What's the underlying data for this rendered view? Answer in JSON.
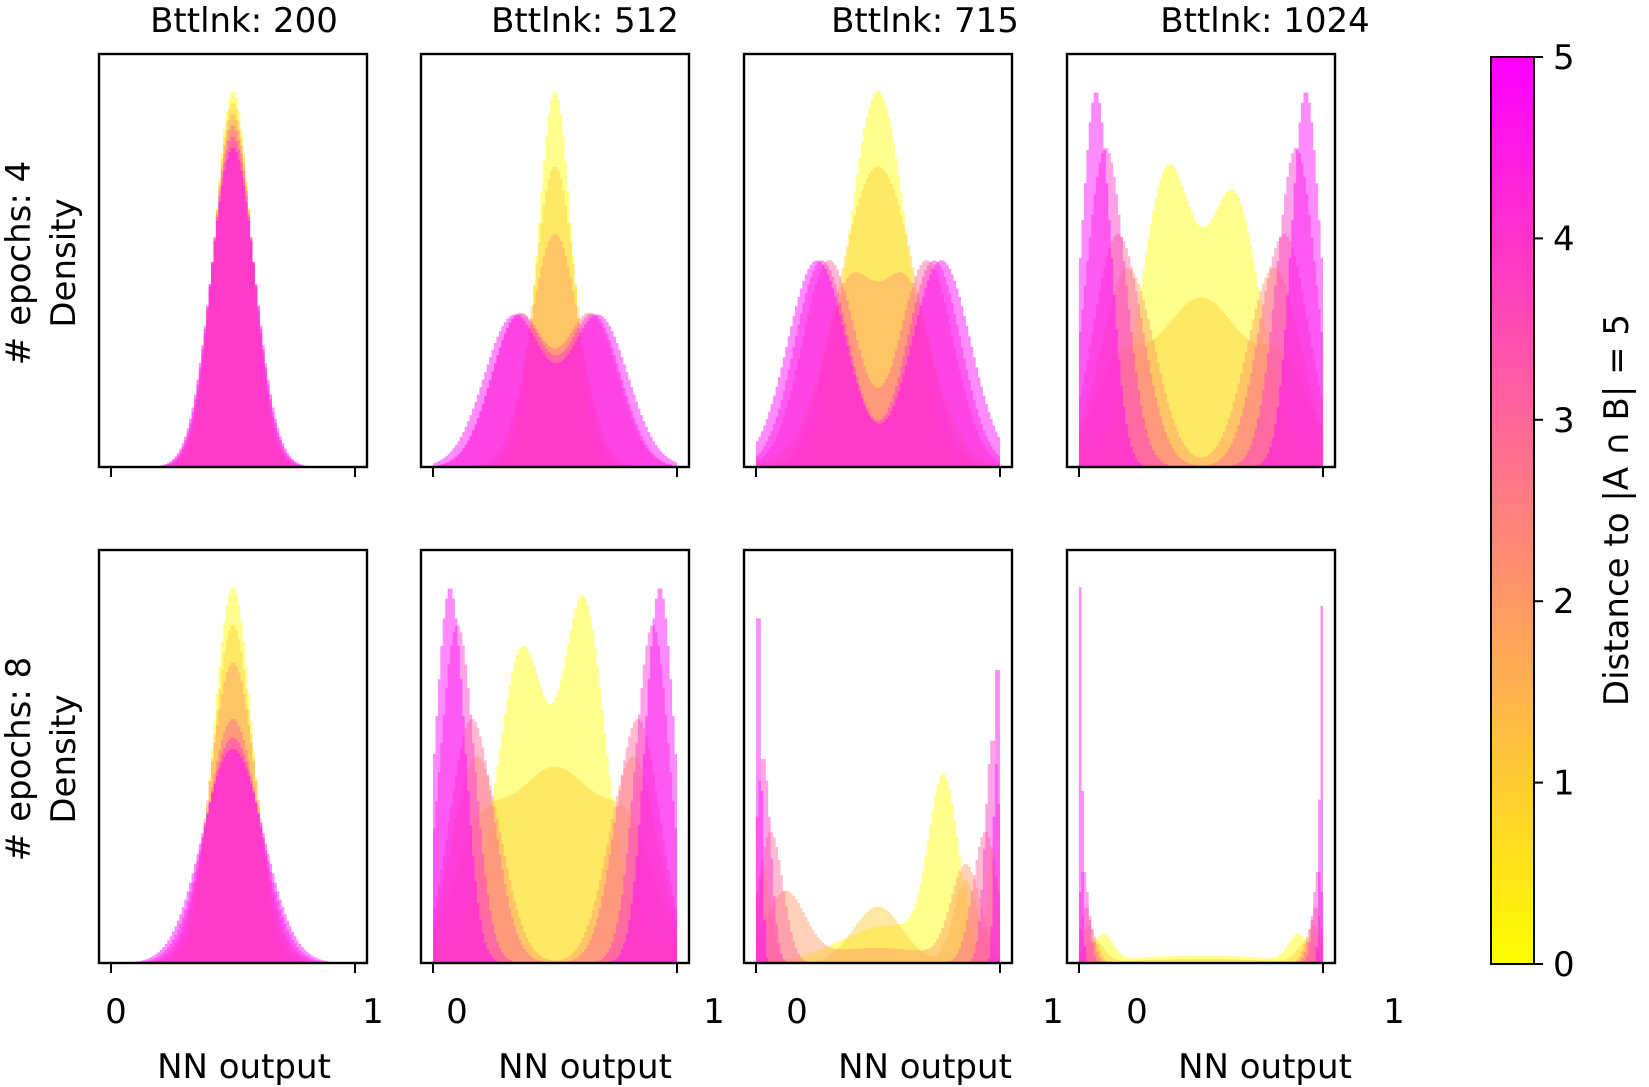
{
  "figure": {
    "columns": [
      {
        "title": "Bttlnk: 200"
      },
      {
        "title": "Bttlnk: 512"
      },
      {
        "title": "Bttlnk: 715"
      },
      {
        "title": "Bttlnk: 1024"
      }
    ],
    "rows": [
      {
        "label_line1": "# epochs: 4",
        "label_line2": "Density"
      },
      {
        "label_line1": "# epochs: 8",
        "label_line2": "Density"
      }
    ],
    "xlabel": "NN output",
    "xticks": [
      "0",
      "1"
    ],
    "colorbar": {
      "label": "Distance to |A ∩ B| = 5",
      "ticks": [
        "0",
        "1",
        "2",
        "3",
        "4",
        "5"
      ],
      "cmap_start": "#ffff00",
      "cmap_end": "#ff00ff",
      "range": [
        0,
        5
      ]
    }
  },
  "chart_data": {
    "type": "area",
    "description_of_marks": "each panel: overlaid translucent histograms (density of NN output on [0,1]) colored by distance d=0..5 on a yellow-to-magenta scale; y axis unlabeled ticks",
    "xlim": [
      0,
      1
    ],
    "panels": [
      {
        "row": 0,
        "col": 0,
        "series": [
          {
            "d": 0,
            "components": [
              {
                "mu": 0.5,
                "sigma": 0.075,
                "amp": 1.0
              }
            ]
          },
          {
            "d": 1,
            "components": [
              {
                "mu": 0.5,
                "sigma": 0.078,
                "amp": 0.97
              }
            ]
          },
          {
            "d": 2,
            "components": [
              {
                "mu": 0.5,
                "sigma": 0.081,
                "amp": 0.94
              }
            ]
          },
          {
            "d": 3,
            "components": [
              {
                "mu": 0.5,
                "sigma": 0.084,
                "amp": 0.91
              }
            ]
          },
          {
            "d": 4,
            "components": [
              {
                "mu": 0.5,
                "sigma": 0.087,
                "amp": 0.88
              }
            ]
          },
          {
            "d": 5,
            "components": [
              {
                "mu": 0.5,
                "sigma": 0.09,
                "amp": 0.85
              }
            ]
          }
        ]
      },
      {
        "row": 0,
        "col": 1,
        "series": [
          {
            "d": 0,
            "components": [
              {
                "mu": 0.5,
                "sigma": 0.07,
                "amp": 1.0
              }
            ]
          },
          {
            "d": 1,
            "components": [
              {
                "mu": 0.5,
                "sigma": 0.085,
                "amp": 0.8
              }
            ]
          },
          {
            "d": 2,
            "components": [
              {
                "mu": 0.5,
                "sigma": 0.1,
                "amp": 0.62
              }
            ]
          },
          {
            "d": 3,
            "components": [
              {
                "mu": 0.35,
                "sigma": 0.11,
                "amp": 0.4
              },
              {
                "mu": 0.65,
                "sigma": 0.11,
                "amp": 0.4
              }
            ]
          },
          {
            "d": 4,
            "components": [
              {
                "mu": 0.35,
                "sigma": 0.11,
                "amp": 0.4
              },
              {
                "mu": 0.66,
                "sigma": 0.11,
                "amp": 0.4
              }
            ]
          },
          {
            "d": 5,
            "components": [
              {
                "mu": 0.33,
                "sigma": 0.12,
                "amp": 0.4
              },
              {
                "mu": 0.68,
                "sigma": 0.12,
                "amp": 0.4
              }
            ]
          }
        ]
      },
      {
        "row": 0,
        "col": 2,
        "series": [
          {
            "d": 0,
            "components": [
              {
                "mu": 0.5,
                "sigma": 0.12,
                "amp": 1.0
              }
            ]
          },
          {
            "d": 1,
            "components": [
              {
                "mu": 0.5,
                "sigma": 0.16,
                "amp": 0.8
              }
            ]
          },
          {
            "d": 2,
            "components": [
              {
                "mu": 0.37,
                "sigma": 0.1,
                "amp": 0.4
              },
              {
                "mu": 0.63,
                "sigma": 0.1,
                "amp": 0.4
              },
              {
                "mu": 0.5,
                "sigma": 0.12,
                "amp": 0.15
              }
            ]
          },
          {
            "d": 3,
            "components": [
              {
                "mu": 0.3,
                "sigma": 0.11,
                "amp": 0.55
              },
              {
                "mu": 0.7,
                "sigma": 0.11,
                "amp": 0.55
              }
            ]
          },
          {
            "d": 4,
            "components": [
              {
                "mu": 0.27,
                "sigma": 0.11,
                "amp": 0.55
              },
              {
                "mu": 0.73,
                "sigma": 0.11,
                "amp": 0.55
              }
            ]
          },
          {
            "d": 5,
            "components": [
              {
                "mu": 0.25,
                "sigma": 0.12,
                "amp": 0.55
              },
              {
                "mu": 0.76,
                "sigma": 0.12,
                "amp": 0.55
              }
            ]
          }
        ]
      },
      {
        "row": 0,
        "col": 3,
        "series": [
          {
            "d": 0,
            "components": [
              {
                "mu": 0.36,
                "sigma": 0.1,
                "amp": 0.62
              },
              {
                "mu": 0.64,
                "sigma": 0.1,
                "amp": 0.55
              },
              {
                "mu": 0.5,
                "sigma": 0.25,
                "amp": 0.2
              }
            ]
          },
          {
            "d": 1,
            "components": [
              {
                "mu": 0.5,
                "sigma": 0.2,
                "amp": 0.45
              },
              {
                "mu": 0.15,
                "sigma": 0.1,
                "amp": 0.2
              },
              {
                "mu": 0.85,
                "sigma": 0.1,
                "amp": 0.2
              }
            ]
          },
          {
            "d": 2,
            "components": [
              {
                "mu": 0.2,
                "sigma": 0.11,
                "amp": 0.53
              },
              {
                "mu": 0.8,
                "sigma": 0.11,
                "amp": 0.53
              }
            ]
          },
          {
            "d": 3,
            "components": [
              {
                "mu": 0.16,
                "sigma": 0.1,
                "amp": 0.62
              },
              {
                "mu": 0.84,
                "sigma": 0.1,
                "amp": 0.62
              }
            ]
          },
          {
            "d": 4,
            "components": [
              {
                "mu": 0.11,
                "sigma": 0.08,
                "amp": 0.85
              },
              {
                "mu": 0.89,
                "sigma": 0.08,
                "amp": 0.85
              }
            ]
          },
          {
            "d": 5,
            "components": [
              {
                "mu": 0.07,
                "sigma": 0.06,
                "amp": 1.0
              },
              {
                "mu": 0.93,
                "sigma": 0.06,
                "amp": 1.0
              }
            ]
          }
        ]
      },
      {
        "row": 1,
        "col": 0,
        "series": [
          {
            "d": 0,
            "components": [
              {
                "mu": 0.5,
                "sigma": 0.08,
                "amp": 1.0
              }
            ]
          },
          {
            "d": 1,
            "components": [
              {
                "mu": 0.5,
                "sigma": 0.085,
                "amp": 0.9
              }
            ]
          },
          {
            "d": 2,
            "components": [
              {
                "mu": 0.5,
                "sigma": 0.095,
                "amp": 0.8
              }
            ]
          },
          {
            "d": 3,
            "components": [
              {
                "mu": 0.5,
                "sigma": 0.105,
                "amp": 0.65
              }
            ]
          },
          {
            "d": 4,
            "components": [
              {
                "mu": 0.5,
                "sigma": 0.115,
                "amp": 0.6
              }
            ]
          },
          {
            "d": 5,
            "components": [
              {
                "mu": 0.5,
                "sigma": 0.125,
                "amp": 0.57
              }
            ]
          }
        ]
      },
      {
        "row": 1,
        "col": 1,
        "series": [
          {
            "d": 0,
            "components": [
              {
                "mu": 0.36,
                "sigma": 0.09,
                "amp": 0.58
              },
              {
                "mu": 0.62,
                "sigma": 0.08,
                "amp": 0.7
              },
              {
                "mu": 0.5,
                "sigma": 0.25,
                "amp": 0.3
              }
            ]
          },
          {
            "d": 1,
            "components": [
              {
                "mu": 0.5,
                "sigma": 0.22,
                "amp": 0.52
              },
              {
                "mu": 0.18,
                "sigma": 0.1,
                "amp": 0.2
              },
              {
                "mu": 0.82,
                "sigma": 0.1,
                "amp": 0.2
              }
            ]
          },
          {
            "d": 2,
            "components": [
              {
                "mu": 0.18,
                "sigma": 0.1,
                "amp": 0.55
              },
              {
                "mu": 0.82,
                "sigma": 0.1,
                "amp": 0.55
              }
            ]
          },
          {
            "d": 3,
            "components": [
              {
                "mu": 0.16,
                "sigma": 0.09,
                "amp": 0.65
              },
              {
                "mu": 0.84,
                "sigma": 0.09,
                "amp": 0.65
              }
            ]
          },
          {
            "d": 4,
            "components": [
              {
                "mu": 0.1,
                "sigma": 0.07,
                "amp": 0.9
              },
              {
                "mu": 0.9,
                "sigma": 0.07,
                "amp": 0.9
              }
            ]
          },
          {
            "d": 5,
            "components": [
              {
                "mu": 0.07,
                "sigma": 0.06,
                "amp": 1.0
              },
              {
                "mu": 0.93,
                "sigma": 0.06,
                "amp": 1.0
              }
            ]
          }
        ]
      },
      {
        "row": 1,
        "col": 2,
        "series": [
          {
            "d": 0,
            "components": [
              {
                "mu": 0.77,
                "sigma": 0.06,
                "amp": 0.45
              },
              {
                "mu": 0.55,
                "sigma": 0.2,
                "amp": 0.1
              },
              {
                "mu": 0.97,
                "sigma": 0.02,
                "amp": 0.3
              }
            ]
          },
          {
            "d": 1,
            "components": [
              {
                "mu": 0.5,
                "sigma": 0.1,
                "amp": 0.15
              },
              {
                "mu": 0.86,
                "sigma": 0.05,
                "amp": 0.22
              },
              {
                "mu": 0.03,
                "sigma": 0.03,
                "amp": 0.25
              }
            ]
          },
          {
            "d": 2,
            "components": [
              {
                "mu": 0.12,
                "sigma": 0.08,
                "amp": 0.18
              },
              {
                "mu": 0.86,
                "sigma": 0.06,
                "amp": 0.25
              },
              {
                "mu": 0.5,
                "sigma": 0.25,
                "amp": 0.04
              }
            ]
          },
          {
            "d": 3,
            "components": [
              {
                "mu": 0.06,
                "sigma": 0.05,
                "amp": 0.35
              },
              {
                "mu": 0.94,
                "sigma": 0.05,
                "amp": 0.35
              }
            ]
          },
          {
            "d": 4,
            "components": [
              {
                "mu": 0.03,
                "sigma": 0.03,
                "amp": 0.55
              },
              {
                "mu": 0.97,
                "sigma": 0.03,
                "amp": 0.6
              }
            ]
          },
          {
            "d": 5,
            "components": [
              {
                "mu": 0.01,
                "sigma": 0.012,
                "amp": 1.0
              },
              {
                "mu": 0.99,
                "sigma": 0.012,
                "amp": 0.85
              }
            ]
          }
        ]
      },
      {
        "row": 1,
        "col": 3,
        "series": [
          {
            "d": 0,
            "components": [
              {
                "mu": 0.1,
                "sigma": 0.04,
                "amp": 0.07
              },
              {
                "mu": 0.9,
                "sigma": 0.04,
                "amp": 0.07
              },
              {
                "mu": 0.5,
                "sigma": 0.3,
                "amp": 0.02
              }
            ]
          },
          {
            "d": 1,
            "components": [
              {
                "mu": 0.06,
                "sigma": 0.04,
                "amp": 0.06
              },
              {
                "mu": 0.94,
                "sigma": 0.04,
                "amp": 0.06
              },
              {
                "mu": 0.5,
                "sigma": 0.3,
                "amp": 0.01
              }
            ]
          },
          {
            "d": 2,
            "components": [
              {
                "mu": 0.04,
                "sigma": 0.03,
                "amp": 0.1
              },
              {
                "mu": 0.96,
                "sigma": 0.03,
                "amp": 0.1
              }
            ]
          },
          {
            "d": 3,
            "components": [
              {
                "mu": 0.03,
                "sigma": 0.025,
                "amp": 0.15
              },
              {
                "mu": 0.97,
                "sigma": 0.025,
                "amp": 0.15
              }
            ]
          },
          {
            "d": 4,
            "components": [
              {
                "mu": 0.02,
                "sigma": 0.02,
                "amp": 0.25
              },
              {
                "mu": 0.98,
                "sigma": 0.02,
                "amp": 0.25
              }
            ]
          },
          {
            "d": 5,
            "components": [
              {
                "mu": 0.005,
                "sigma": 0.008,
                "amp": 1.0
              },
              {
                "mu": 0.995,
                "sigma": 0.008,
                "amp": 0.95
              }
            ]
          }
        ]
      }
    ]
  }
}
